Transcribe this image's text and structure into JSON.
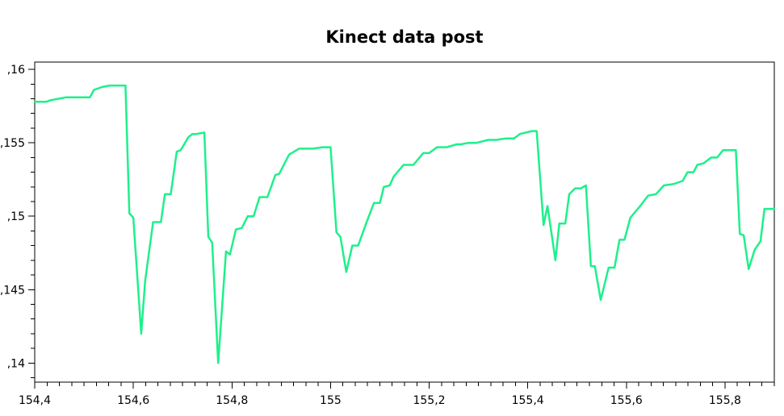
{
  "chart_data": {
    "type": "line",
    "title": "Kinect data post",
    "xlabel": "",
    "ylabel": "",
    "xlim": [
      154.4,
      155.9
    ],
    "ylim": [
      0.1387,
      0.1605
    ],
    "x_ticks": [
      "154,4",
      "154,6",
      "154,8",
      "155",
      "155,2",
      "155,4",
      "155,6",
      "155,8"
    ],
    "x_tick_values": [
      154.4,
      154.6,
      154.8,
      155.0,
      155.2,
      155.4,
      155.6,
      155.8
    ],
    "y_ticks": [
      ",16",
      ",155",
      ",15",
      ",145",
      ",14"
    ],
    "y_tick_values": [
      0.16,
      0.155,
      0.15,
      0.145,
      0.14
    ],
    "grid": false,
    "colors": {
      "series": "#1ef08a",
      "axis": "#000000"
    },
    "series": [
      {
        "x": [
          154.4,
          154.424,
          154.432,
          154.448,
          154.464,
          154.512,
          154.52,
          154.536,
          154.552,
          154.584,
          154.592,
          154.6,
          154.616,
          154.624,
          154.64,
          154.656,
          154.664,
          154.676,
          154.688,
          154.696,
          154.712,
          154.72,
          154.728,
          154.744,
          154.752,
          154.76,
          154.772,
          154.788,
          154.796,
          154.808,
          154.82,
          154.832,
          154.844,
          154.856,
          154.864,
          154.872,
          154.888,
          154.896,
          154.916,
          154.936,
          154.964,
          154.984,
          155.0,
          155.012,
          155.02,
          155.032,
          155.044,
          155.056,
          155.072,
          155.088,
          155.1,
          155.108,
          155.12,
          155.128,
          155.148,
          155.168,
          155.188,
          155.2,
          155.216,
          155.236,
          155.256,
          155.264,
          155.28,
          155.296,
          155.32,
          155.336,
          155.356,
          155.372,
          155.384,
          155.408,
          155.418,
          155.432,
          155.44,
          155.456,
          155.464,
          155.476,
          155.484,
          155.496,
          155.508,
          155.518,
          155.528,
          155.536,
          155.548,
          155.564,
          155.576,
          155.586,
          155.596,
          155.608,
          155.628,
          155.644,
          155.66,
          155.676,
          155.696,
          155.714,
          155.724,
          155.736,
          155.744,
          155.756,
          155.772,
          155.784,
          155.796,
          155.818,
          155.822,
          155.83,
          155.838,
          155.848,
          155.86,
          155.872,
          155.88,
          155.9
        ],
        "y": [
          0.1578,
          0.1578,
          0.1579,
          0.158,
          0.1581,
          0.1581,
          0.1586,
          0.1588,
          0.1589,
          0.1589,
          0.1502,
          0.1499,
          0.142,
          0.1456,
          0.1496,
          0.1496,
          0.1515,
          0.1515,
          0.1544,
          0.1545,
          0.1554,
          0.1556,
          0.1556,
          0.1557,
          0.1486,
          0.1482,
          0.14,
          0.1476,
          0.1474,
          0.1491,
          0.1492,
          0.15,
          0.15,
          0.1513,
          0.1513,
          0.1513,
          0.1528,
          0.1529,
          0.1542,
          0.1546,
          0.1546,
          0.1547,
          0.1547,
          0.1489,
          0.1486,
          0.1462,
          0.148,
          0.148,
          0.1495,
          0.1509,
          0.1509,
          0.152,
          0.1521,
          0.1527,
          0.1535,
          0.1535,
          0.1543,
          0.1543,
          0.1547,
          0.1547,
          0.1549,
          0.1549,
          0.155,
          0.155,
          0.1552,
          0.1552,
          0.1553,
          0.1553,
          0.1556,
          0.1558,
          0.1558,
          0.1494,
          0.1507,
          0.147,
          0.1495,
          0.1495,
          0.1515,
          0.1519,
          0.1519,
          0.1521,
          0.1466,
          0.1466,
          0.1443,
          0.1465,
          0.1465,
          0.1484,
          0.1484,
          0.1499,
          0.1507,
          0.1514,
          0.1515,
          0.1521,
          0.1522,
          0.1524,
          0.153,
          0.153,
          0.1535,
          0.1536,
          0.154,
          0.154,
          0.1545,
          0.1545,
          0.1545,
          0.1488,
          0.1487,
          0.1464,
          0.1477,
          0.1483,
          0.1505,
          0.1505
        ]
      }
    ]
  }
}
